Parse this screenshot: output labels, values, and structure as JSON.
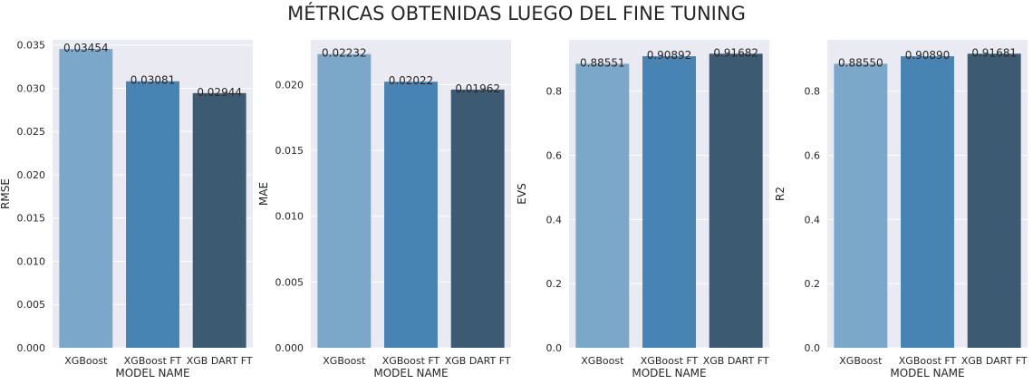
{
  "title": "MÉTRICAS OBTENIDAS LUEGO DEL FINE TUNING",
  "colors": [
    "#7ba7c9",
    "#4884b3",
    "#3c5b72"
  ],
  "chart_data": [
    {
      "type": "bar",
      "categories": [
        "XGBoost",
        "XGBoost FT",
        "XGB DART FT"
      ],
      "values": [
        0.03454,
        0.03081,
        0.02944
      ],
      "value_labels": [
        "0.03454",
        "0.03081",
        "0.02944"
      ],
      "xlabel": "MODEL NAME",
      "ylabel": "RMSE",
      "ylim": [
        0,
        0.0356
      ],
      "yticks": [
        0.0,
        0.005,
        0.01,
        0.015,
        0.02,
        0.025,
        0.03,
        0.035
      ],
      "ytick_labels": [
        "0.000",
        "0.005",
        "0.010",
        "0.015",
        "0.020",
        "0.025",
        "0.030",
        "0.035"
      ],
      "grid": true
    },
    {
      "type": "bar",
      "categories": [
        "XGBoost",
        "XGBoost FT",
        "XGB DART FT"
      ],
      "values": [
        0.02232,
        0.02022,
        0.01962
      ],
      "value_labels": [
        "0.02232",
        "0.02022",
        "0.01962"
      ],
      "xlabel": "MODEL NAME",
      "ylabel": "MAE",
      "ylim": [
        0,
        0.0234
      ],
      "yticks": [
        0.0,
        0.005,
        0.01,
        0.015,
        0.02
      ],
      "ytick_labels": [
        "0.000",
        "0.005",
        "0.010",
        "0.015",
        "0.020"
      ],
      "grid": true
    },
    {
      "type": "bar",
      "categories": [
        "XGBoost",
        "XGBoost FT",
        "XGB DART FT"
      ],
      "values": [
        0.88551,
        0.90892,
        0.91682
      ],
      "value_labels": [
        "0.88551",
        "0.90892",
        "0.91682"
      ],
      "xlabel": "MODEL NAME",
      "ylabel": "EVS",
      "ylim": [
        0,
        0.96
      ],
      "yticks": [
        0.0,
        0.2,
        0.4,
        0.6,
        0.8
      ],
      "ytick_labels": [
        "0.0",
        "0.2",
        "0.4",
        "0.6",
        "0.8"
      ],
      "grid": true
    },
    {
      "type": "bar",
      "categories": [
        "XGBoost",
        "XGBoost FT",
        "XGB DART FT"
      ],
      "values": [
        0.8855,
        0.9089,
        0.91681
      ],
      "value_labels": [
        "0.88550",
        "0.90890",
        "0.91681"
      ],
      "xlabel": "MODEL NAME",
      "ylabel": "R2",
      "ylim": [
        0,
        0.96
      ],
      "yticks": [
        0.0,
        0.2,
        0.4,
        0.6,
        0.8
      ],
      "ytick_labels": [
        "0.0",
        "0.2",
        "0.4",
        "0.6",
        "0.8"
      ],
      "grid": true
    }
  ]
}
